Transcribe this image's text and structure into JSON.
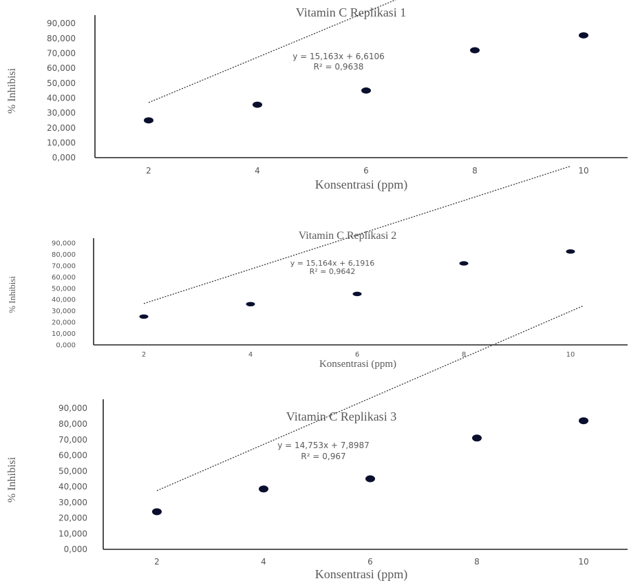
{
  "chart_data": [
    {
      "type": "scatter",
      "title": "Vitamin C Replikasi 1",
      "xlabel": "Konsentrasi (ppm)",
      "ylabel": "% Inhibisi",
      "x": [
        2,
        4,
        6,
        8,
        10
      ],
      "y": [
        25.0,
        35.5,
        45.0,
        72.0,
        82.0
      ],
      "xticks": [
        "2",
        "4",
        "6",
        "8",
        "10"
      ],
      "yticks": [
        "0,000",
        "10,000",
        "20,000",
        "30,000",
        "40,000",
        "50,000",
        "60,000",
        "70,000",
        "80,000",
        "90,000"
      ],
      "ylim": [
        0,
        90
      ],
      "trendline": {
        "type": "linear",
        "slope": 15.163,
        "intercept": 6.6106,
        "style": "dotted"
      },
      "equation": "y = 15,163x + 6,6106",
      "r2": "R² = 0,9638",
      "grid": false
    },
    {
      "type": "scatter",
      "title": "Vitamin C Replikasi 2",
      "xlabel": "Konsentrasi  (ppm)",
      "ylabel": "% Inhibisi",
      "x": [
        2,
        4,
        6,
        8,
        10
      ],
      "y": [
        25.0,
        36.0,
        45.0,
        72.0,
        82.5
      ],
      "xticks": [
        "2",
        "4",
        "6",
        "8",
        "10"
      ],
      "yticks": [
        "0,000",
        "10,000",
        "20,000",
        "30,000",
        "40,000",
        "50,000",
        "60,000",
        "70,000",
        "80,000",
        "90,000"
      ],
      "ylim": [
        0,
        90
      ],
      "trendline": {
        "type": "linear",
        "slope": 15.164,
        "intercept": 6.1916,
        "style": "dotted"
      },
      "equation": "y = 15,164x + 6,1916",
      "r2": "R² = 0,9642",
      "grid": false
    },
    {
      "type": "scatter",
      "title": "Vitamin C Replikasi 3",
      "xlabel": "Konsentrasi (ppm)",
      "ylabel": "% Inhibisi",
      "x": [
        2,
        4,
        6,
        8,
        10
      ],
      "y": [
        24.0,
        38.5,
        45.0,
        71.0,
        82.0
      ],
      "xticks": [
        "2",
        "4",
        "6",
        "8",
        "10"
      ],
      "yticks": [
        "0,000",
        "10,000",
        "20,000",
        "30,000",
        "40,000",
        "50,000",
        "60,000",
        "70,000",
        "80,000",
        "90,000"
      ],
      "ylim": [
        0,
        90
      ],
      "trendline": {
        "type": "linear",
        "slope": 14.753,
        "intercept": 7.8987,
        "style": "dotted"
      },
      "equation": "y = 14,753x + 7,8987",
      "r2": "R² = 0,967",
      "grid": false
    }
  ],
  "colors": {
    "marker": "#0a0f2e",
    "trendline": "#333333",
    "axis": "#222222",
    "text": "#595959"
  }
}
